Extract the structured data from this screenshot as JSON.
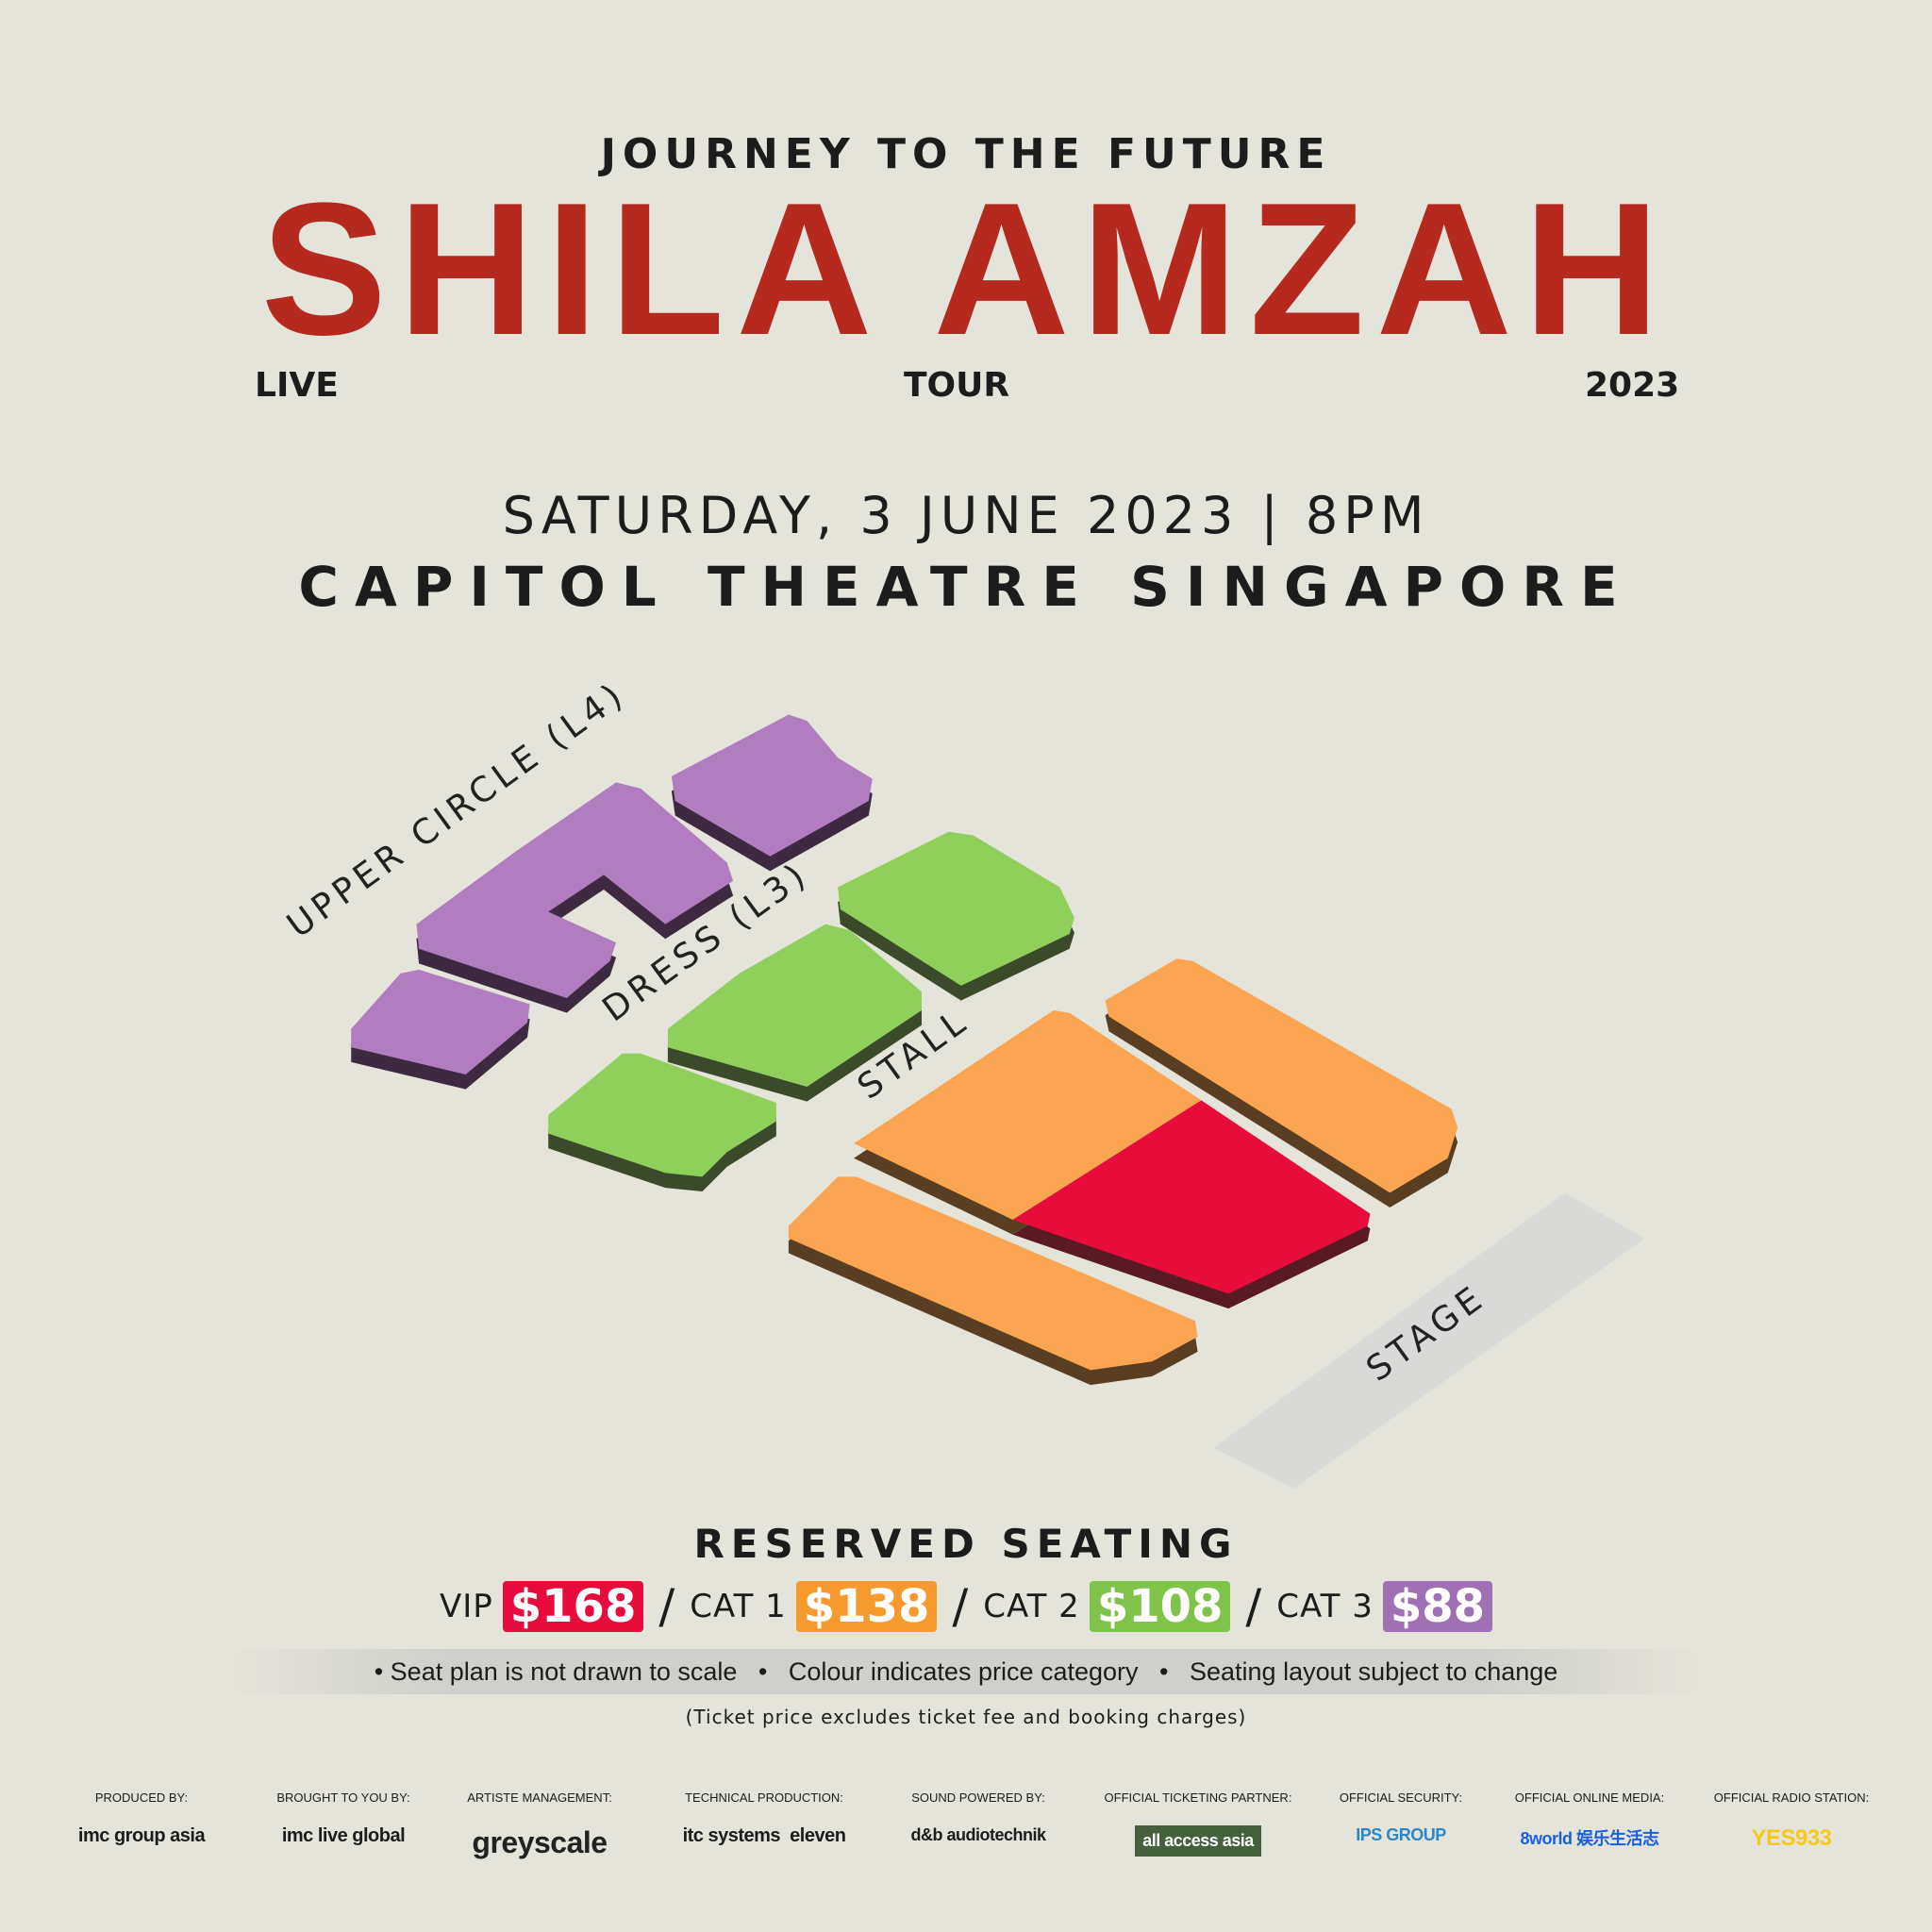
{
  "header": {
    "subtitle": "JOURNEY TO THE FUTURE",
    "title": "SHILA AMZAH",
    "tag_left": "LIVE",
    "tag_center": "TOUR",
    "tag_right": "2023"
  },
  "event": {
    "date_time": "SATURDAY, 3 JUNE 2023 | 8PM",
    "venue": "CAPITOL THEATRE SINGAPORE"
  },
  "seatmap": {
    "labels": {
      "upper": "UPPER CIRCLE (L4)",
      "dress": "DRESS (L3)",
      "stall": "STALL",
      "stage": "STAGE"
    }
  },
  "colors": {
    "title": "#b5291f",
    "vip": "#e80c3c",
    "cat1": "#fba553",
    "cat2": "#8fd05c",
    "cat3": "#b27cc0",
    "background": "#e5e4da"
  },
  "pricing": {
    "heading": "RESERVED SEATING",
    "tiers": [
      {
        "label": "VIP",
        "price": "$168"
      },
      {
        "label": "CAT 1",
        "price": "$138"
      },
      {
        "label": "CAT 2",
        "price": "$108"
      },
      {
        "label": "CAT 3",
        "price": "$88"
      }
    ],
    "separator": "/",
    "notes": "• Seat plan is not drawn to scale   •   Colour indicates price category   •   Seating layout subject to change",
    "fine_print": "(Ticket price excludes ticket fee and booking charges)"
  },
  "sponsors": [
    {
      "label": "PRODUCED BY:",
      "logo": "imc group asia"
    },
    {
      "label": "BROUGHT TO YOU BY:",
      "logo": "imc live global"
    },
    {
      "label": "ARTISTE MANAGEMENT:",
      "logo": "greyscale"
    },
    {
      "label": "TECHNICAL PRODUCTION:",
      "logo": "itc systems  eleven"
    },
    {
      "label": "SOUND POWERED BY:",
      "logo": "d&b audiotechnik"
    },
    {
      "label": "OFFICIAL TICKETING PARTNER:",
      "logo": "all access asia"
    },
    {
      "label": "OFFICIAL SECURITY:",
      "logo": "IPS GROUP"
    },
    {
      "label": "OFFICIAL ONLINE MEDIA:",
      "logo": "8world 娱乐生活志"
    },
    {
      "label": "OFFICIAL RADIO STATION:",
      "logo": "YES933"
    }
  ]
}
